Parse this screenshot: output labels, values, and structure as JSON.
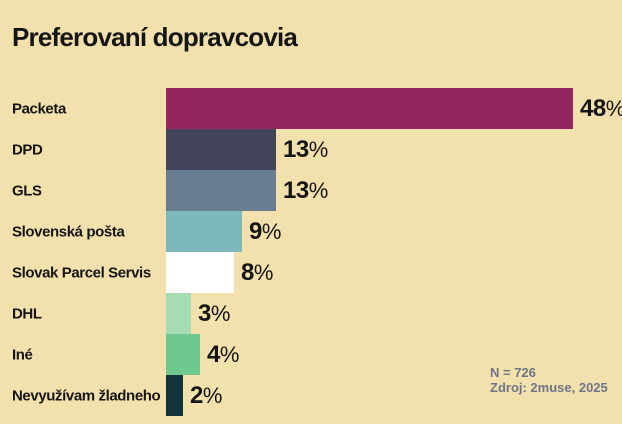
{
  "title": "Preferovaní dopravcovia",
  "footnote": {
    "line1": "N = 726",
    "line2": "Zdroj: 2muse, 2025"
  },
  "colors": {
    "background": "#f2e0ad",
    "text": "#151515",
    "footnote_text": "#6e7585"
  },
  "chart_data": {
    "type": "bar",
    "orientation": "horizontal",
    "title": "Preferovaní dopravcovia",
    "categories": [
      "Packeta",
      "DPD",
      "GLS",
      "Slovenská pošta",
      "Slovak Parcel Servis",
      "DHL",
      "Iné",
      "Nevyužívam žladneho"
    ],
    "values": [
      48,
      13,
      13,
      9,
      8,
      3,
      4,
      2
    ],
    "value_suffix": "%",
    "bar_colors": [
      "#93265c",
      "#424459",
      "#697c92",
      "#7db8bc",
      "#ffffff",
      "#a5dcb4",
      "#6fc88d",
      "#12333c"
    ],
    "xlim": [
      0,
      48
    ],
    "grid": false,
    "legend": "none",
    "annotations": [
      "N = 726",
      "Zdroj: 2muse, 2025"
    ]
  }
}
